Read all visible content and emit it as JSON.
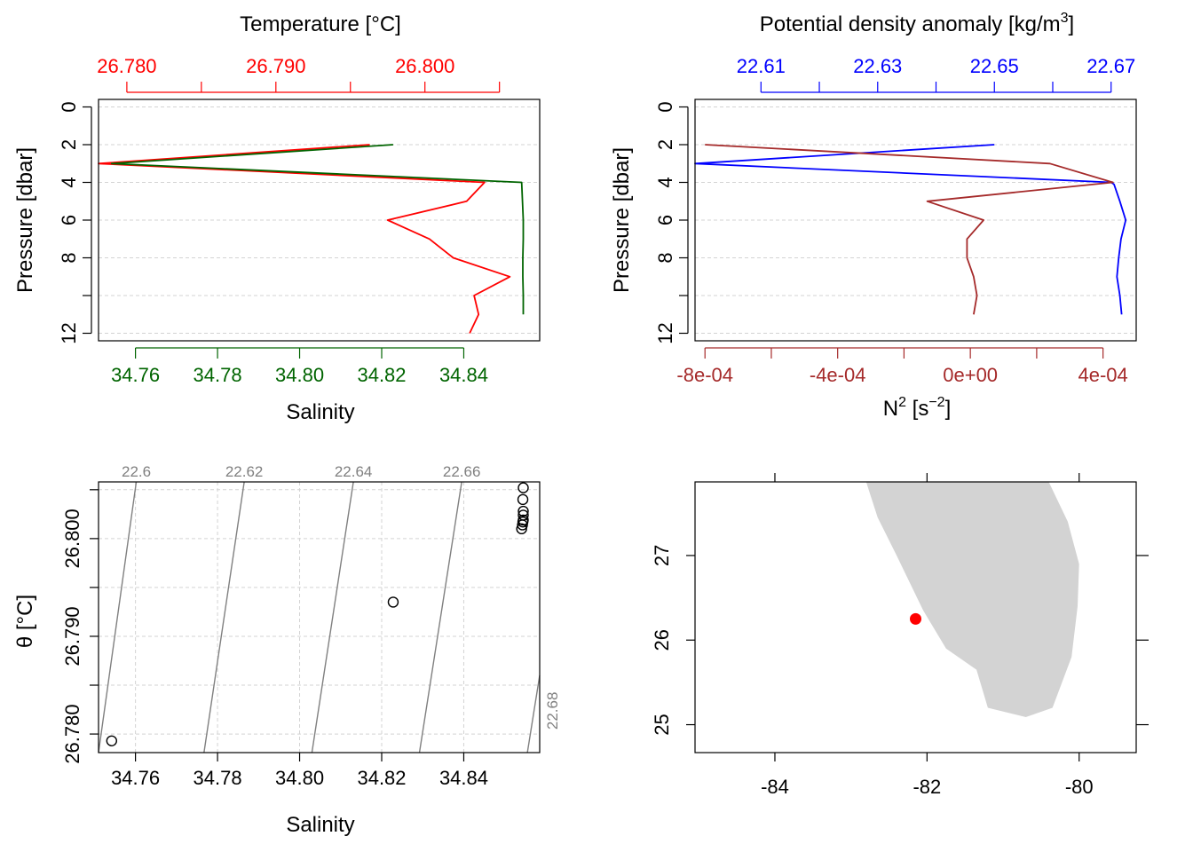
{
  "colors": {
    "temperature": "#ff0000",
    "salinity": "#006400",
    "density": "#0000ff",
    "n2": "#a52a2a",
    "isopycnal": "#808080",
    "grid": "#d3d3d3",
    "land": "#d3d3d3",
    "station": "#ff0000",
    "axis": "#000000"
  },
  "chart_data": [
    {
      "type": "line",
      "panel": "temperature-salinity-profile",
      "ylabel": "Pressure [dbar]",
      "ylim": [
        12.4,
        -0.4
      ],
      "yticks": [
        "0",
        "2",
        "4",
        "6",
        "8",
        "",
        "12"
      ],
      "temperature_axis": {
        "label": "Temperature [°C]",
        "range": [
          26.7781,
          26.8077
        ],
        "ticks": [
          "26.780",
          "26.790",
          "26.800"
        ]
      },
      "salinity_axis": {
        "label": "Salinity",
        "range": [
          34.751,
          34.8585
        ],
        "ticks": [
          "34.76",
          "34.78",
          "34.80",
          "34.82",
          "34.84"
        ]
      },
      "series": [
        {
          "quantity": "temperature",
          "pressure": [
            2.0,
            3.0,
            4.0,
            5.0,
            6.0,
            7.0,
            8.0,
            9.0,
            10.0,
            11.0,
            12.0
          ],
          "values": [
            26.7963,
            26.7781,
            26.804,
            26.8028,
            26.7975,
            26.8003,
            26.8019,
            26.8057,
            26.8033,
            26.8036,
            26.803
          ]
        },
        {
          "quantity": "salinity",
          "pressure": [
            2.0,
            3.0,
            4.0,
            5.0,
            6.0,
            7.0,
            8.0,
            9.0,
            10.0,
            11.0
          ],
          "values": [
            34.8228,
            34.7542,
            34.8541,
            34.8543,
            34.8545,
            34.8545,
            34.8544,
            34.8544,
            34.8545,
            34.8545
          ]
        }
      ]
    },
    {
      "type": "line",
      "panel": "density-n2-profile",
      "ylabel": "Pressure [dbar]",
      "ylim": [
        12.4,
        -0.4
      ],
      "yticks": [
        "0",
        "2",
        "4",
        "6",
        "8",
        "",
        "12"
      ],
      "density_axis": {
        "label_main": "Potential density anomaly [kg/m",
        "label_sup": "3",
        "label_end": "]",
        "range": [
          22.5987,
          22.6743
        ],
        "ticks": [
          "22.61",
          "22.63",
          "22.65",
          "22.67"
        ]
      },
      "n2_axis": {
        "label_main": "N",
        "label_sup1": "2",
        "label_mid": " [s",
        "label_sup2": "−2",
        "label_end": "]",
        "range": [
          -0.00083,
          0.0005
        ],
        "ticks": [
          "-8e-04",
          "-4e-04",
          "0e+00",
          "4e-04"
        ]
      },
      "series": [
        {
          "quantity": "density",
          "pressure": [
            2.0,
            3.0,
            4.0,
            4.1,
            5.0,
            6.0,
            7.0,
            8.0,
            9.0,
            10.0,
            11.0
          ],
          "values": [
            22.65,
            22.5987,
            22.67,
            22.6705,
            22.6715,
            22.6725,
            22.6717,
            22.6713,
            22.671,
            22.6715,
            22.6718
          ]
        },
        {
          "quantity": "n2",
          "pressure": [
            2.0,
            3.0,
            4.0,
            5.0,
            6.0,
            7.0,
            8.0,
            9.0,
            10.0,
            11.0
          ],
          "values": [
            -0.0008,
            0.00024,
            0.00043,
            -0.00013,
            4e-05,
            -1e-05,
            -1e-05,
            1e-05,
            2e-05,
            1e-05
          ]
        }
      ]
    },
    {
      "type": "scatter",
      "panel": "ts-diagram",
      "xlabel": "Salinity",
      "ylabel": "θ [°C]",
      "xlim": [
        34.751,
        34.8585
      ],
      "ylim": [
        26.7781,
        26.8058
      ],
      "xticks": [
        "34.76",
        "34.78",
        "34.80",
        "34.82",
        "34.84"
      ],
      "yticks": [
        "26.780",
        "26.790",
        "26.800"
      ],
      "points": {
        "x": [
          34.7542,
          34.8228,
          34.8541,
          34.8543,
          34.8544,
          34.8545,
          34.8545,
          34.8544,
          34.8545,
          34.8545
        ],
        "y": [
          26.7793,
          26.7935,
          26.801,
          26.8014,
          26.8017,
          26.8019,
          26.8024,
          26.804,
          26.8052,
          26.8028
        ]
      },
      "isopycnals": [
        {
          "label": "22.6",
          "bottom_x": 34.751,
          "top_x": 34.7602
        },
        {
          "label": "22.62",
          "bottom_x": 34.7767,
          "top_x": 34.7865
        },
        {
          "label": "22.64",
          "bottom_x": 34.803,
          "top_x": 34.8131
        },
        {
          "label": "22.66",
          "bottom_x": 34.8292,
          "top_x": 34.8395
        },
        {
          "label": "22.68",
          "bottom_x": 34.8555,
          "top_x": 34.866
        }
      ]
    },
    {
      "type": "map",
      "panel": "station-map",
      "xlim": [
        -85.05,
        -79.25
      ],
      "ylim": [
        24.67,
        27.87
      ],
      "xticks": [
        "-84",
        "-82",
        "-80"
      ],
      "yticks": [
        "25",
        "26",
        "27"
      ],
      "station": {
        "lon": -82.15,
        "lat": 26.25
      },
      "land": [
        [
          -82.8,
          27.87
        ],
        [
          -82.65,
          27.45
        ],
        [
          -82.4,
          27.0
        ],
        [
          -82.05,
          26.35
        ],
        [
          -81.75,
          25.9
        ],
        [
          -81.35,
          25.65
        ],
        [
          -81.2,
          25.2
        ],
        [
          -80.7,
          25.09
        ],
        [
          -80.35,
          25.2
        ],
        [
          -80.1,
          25.8
        ],
        [
          -80.02,
          26.4
        ],
        [
          -80.0,
          26.9
        ],
        [
          -80.15,
          27.4
        ],
        [
          -80.4,
          27.87
        ]
      ]
    }
  ]
}
